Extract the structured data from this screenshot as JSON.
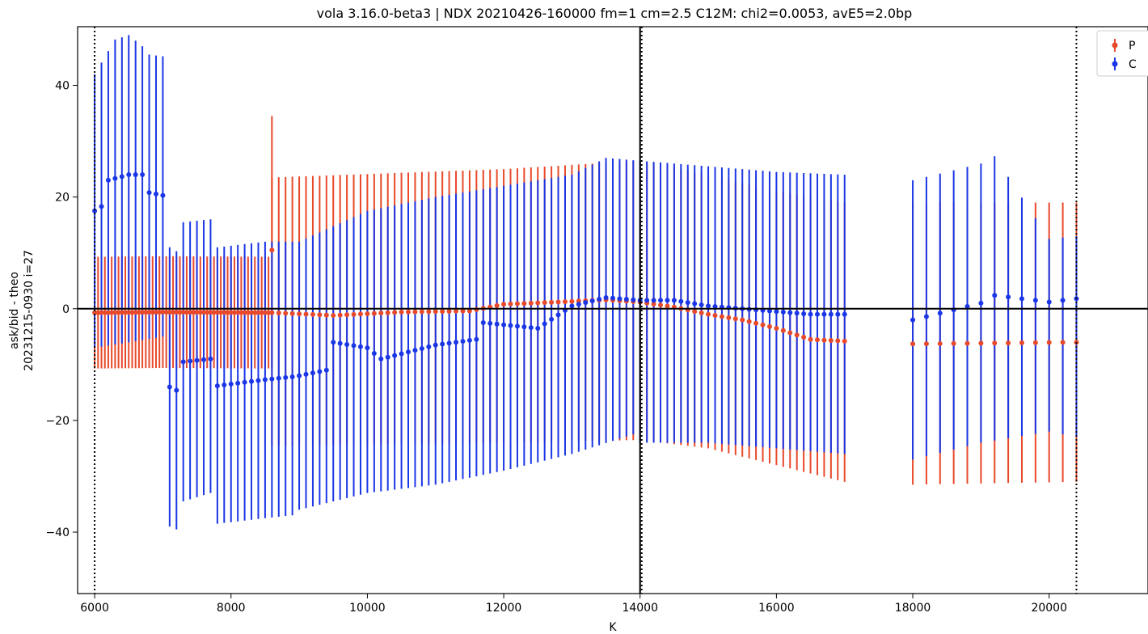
{
  "chart_data": {
    "type": "errorbar",
    "title": "vola 3.16.0-beta3 | NDX 20210426-160000 fm=1 cm=2.5 C12M: chi2=0.0053, avE5=2.0bp",
    "xlabel": "K",
    "ylabel_line1": "ask/bid - theo",
    "ylabel_line2": "20231215-0930 i=27",
    "xlim": [
      5750,
      21450
    ],
    "ylim": [
      -51,
      50.5
    ],
    "xticks": [
      6000,
      8000,
      10000,
      12000,
      14000,
      16000,
      18000,
      20000
    ],
    "yticks": [
      -40,
      -20,
      0,
      20,
      40
    ],
    "ytick_labels": [
      "−40",
      "−20",
      "0",
      "20",
      "40"
    ],
    "hline": 0,
    "vline_solid": 14000,
    "vlines_dotted": [
      6000,
      14000,
      20400
    ],
    "legend": {
      "position": "top-right"
    },
    "series": [
      {
        "name": "P",
        "color": "#e8492a",
        "segments": [
          {
            "start": 6000,
            "step": 50,
            "count": 53,
            "center": [
              [
                6000,
                -0.7
              ],
              [
                7000,
                -0.6
              ],
              [
                8600,
                -0.7
              ],
              [
                9500,
                -1.2
              ],
              [
                10500,
                -0.6
              ],
              [
                11500,
                -0.4
              ],
              [
                12000,
                0.8
              ],
              [
                12800,
                1.2
              ],
              [
                13500,
                1.6
              ],
              [
                14000,
                1.2
              ],
              [
                14500,
                0.3
              ],
              [
                15000,
                -1.0
              ],
              [
                15500,
                -2.0
              ],
              [
                16000,
                -3.5
              ],
              [
                16500,
                -5.5
              ],
              [
                17000,
                -5.8
              ]
            ],
            "low": [
              [
                6000,
                -10.7
              ],
              [
                7000,
                -10.6
              ],
              [
                8600,
                -10.7
              ]
            ],
            "high": [
              [
                6000,
                9.3
              ],
              [
                7000,
                9.4
              ],
              [
                8600,
                9.3
              ]
            ]
          },
          {
            "start": 8600,
            "step": 100,
            "count": 85,
            "center": [
              [
                6000,
                -0.7
              ],
              [
                7000,
                -0.6
              ],
              [
                8600,
                -0.7
              ],
              [
                9500,
                -1.2
              ],
              [
                10500,
                -0.6
              ],
              [
                11500,
                -0.4
              ],
              [
                12000,
                0.8
              ],
              [
                12800,
                1.2
              ],
              [
                13500,
                1.6
              ],
              [
                14000,
                1.2
              ],
              [
                14500,
                0.3
              ],
              [
                15000,
                -1.0
              ],
              [
                15500,
                -2.0
              ],
              [
                16000,
                -3.5
              ],
              [
                16500,
                -5.5
              ],
              [
                17000,
                -5.8
              ]
            ],
            "low": [
              [
                8600,
                -24.5
              ],
              [
                12000,
                -24
              ],
              [
                14000,
                -23.5
              ],
              [
                15000,
                -25
              ],
              [
                16000,
                -28
              ],
              [
                17000,
                -31
              ]
            ],
            "high": [
              [
                8600,
                23.5
              ],
              [
                12000,
                25
              ],
              [
                14000,
                26.5
              ],
              [
                15000,
                24
              ],
              [
                16000,
                21
              ],
              [
                17000,
                19
              ]
            ]
          },
          {
            "start": 18000,
            "step": 200,
            "count": 13,
            "center": [
              [
                18000,
                -6.3
              ],
              [
                20400,
                -6.0
              ]
            ],
            "low": [
              [
                18000,
                -31.5
              ],
              [
                20400,
                -31
              ]
            ],
            "high": [
              [
                18000,
                19
              ],
              [
                20400,
                19
              ]
            ]
          }
        ],
        "spikes": [
          {
            "x": 8600,
            "y": 10.5,
            "low": 10.5,
            "high": 34.5
          }
        ]
      },
      {
        "name": "C",
        "color": "#1a36e6",
        "segments": [
          {
            "start": 6000,
            "step": 100,
            "count": 11,
            "center": [
              [
                6000,
                17.5
              ],
              [
                6100,
                18.3
              ],
              [
                6200,
                23.0
              ],
              [
                6500,
                24.0
              ],
              [
                6700,
                24.0
              ],
              [
                6800,
                20.8
              ],
              [
                7000,
                20.3
              ]
            ],
            "low": [
              [
                6000,
                -7
              ],
              [
                7000,
                -5
              ]
            ],
            "high": [
              [
                6000,
                42
              ],
              [
                6300,
                48.2
              ],
              [
                6500,
                49
              ],
              [
                6700,
                47
              ],
              [
                6800,
                45.5
              ],
              [
                7000,
                45.2
              ]
            ]
          },
          {
            "start": 7100,
            "step": 100,
            "count": 19,
            "center": [
              [
                7100,
                -14
              ],
              [
                7200,
                -14.6
              ],
              [
                7300,
                -9.5
              ],
              [
                7700,
                -9.0
              ],
              [
                7800,
                -13.8
              ],
              [
                8500,
                -12.7
              ],
              [
                8900,
                -12.2
              ]
            ],
            "low": [
              [
                7100,
                -39
              ],
              [
                7200,
                -39.5
              ],
              [
                7300,
                -34.5
              ],
              [
                7700,
                -33
              ],
              [
                7800,
                -38.5
              ],
              [
                8500,
                -37.5
              ],
              [
                8900,
                -37
              ]
            ],
            "high": [
              [
                7100,
                11
              ],
              [
                7200,
                10.3
              ],
              [
                7300,
                15.5
              ],
              [
                7700,
                16
              ],
              [
                7800,
                11
              ],
              [
                8500,
                12
              ]
            ]
          },
          {
            "start": 9000,
            "step": 100,
            "count": 81,
            "center": [
              [
                9000,
                -12.0
              ],
              [
                9400,
                -11.0
              ],
              [
                9500,
                -6.0
              ],
              [
                10000,
                -7.0
              ],
              [
                10200,
                -9.0
              ],
              [
                11000,
                -6.5
              ],
              [
                11600,
                -5.5
              ],
              [
                11700,
                -2.5
              ],
              [
                12500,
                -3.5
              ],
              [
                13000,
                0.5
              ],
              [
                13500,
                2.0
              ],
              [
                14000,
                1.5
              ],
              [
                14500,
                1.5
              ],
              [
                15000,
                0.5
              ],
              [
                15500,
                0.0
              ],
              [
                16000,
                -0.5
              ],
              [
                16500,
                -1.0
              ],
              [
                17000,
                -1.0
              ]
            ],
            "low": [
              [
                9000,
                -36
              ],
              [
                10000,
                -33
              ],
              [
                11000,
                -31.5
              ],
              [
                12000,
                -29
              ],
              [
                13000,
                -26
              ],
              [
                13900,
                -22.5
              ],
              [
                14000,
                -24
              ],
              [
                15000,
                -24
              ],
              [
                16000,
                -25
              ],
              [
                17000,
                -26
              ]
            ],
            "high": [
              [
                9000,
                12
              ],
              [
                10000,
                17.5
              ],
              [
                11000,
                20
              ],
              [
                12000,
                22
              ],
              [
                13000,
                24
              ],
              [
                13500,
                27
              ],
              [
                14000,
                26.5
              ],
              [
                15000,
                25.5
              ],
              [
                16000,
                24.5
              ],
              [
                17000,
                24
              ]
            ]
          },
          {
            "start": 18000,
            "step": 200,
            "count": 13,
            "center": [
              [
                18000,
                -2.0
              ],
              [
                18500,
                -0.5
              ],
              [
                19000,
                1.0
              ],
              [
                19200,
                2.4
              ],
              [
                20000,
                1.2
              ],
              [
                20400,
                1.8
              ]
            ],
            "low": [
              [
                18000,
                -27
              ],
              [
                19000,
                -24
              ],
              [
                20000,
                -22
              ],
              [
                20400,
                -23
              ]
            ],
            "high": [
              [
                18000,
                23
              ],
              [
                19000,
                26
              ],
              [
                19200,
                27.3
              ],
              [
                20000,
                12.5
              ],
              [
                20400,
                13
              ]
            ]
          }
        ]
      }
    ]
  }
}
